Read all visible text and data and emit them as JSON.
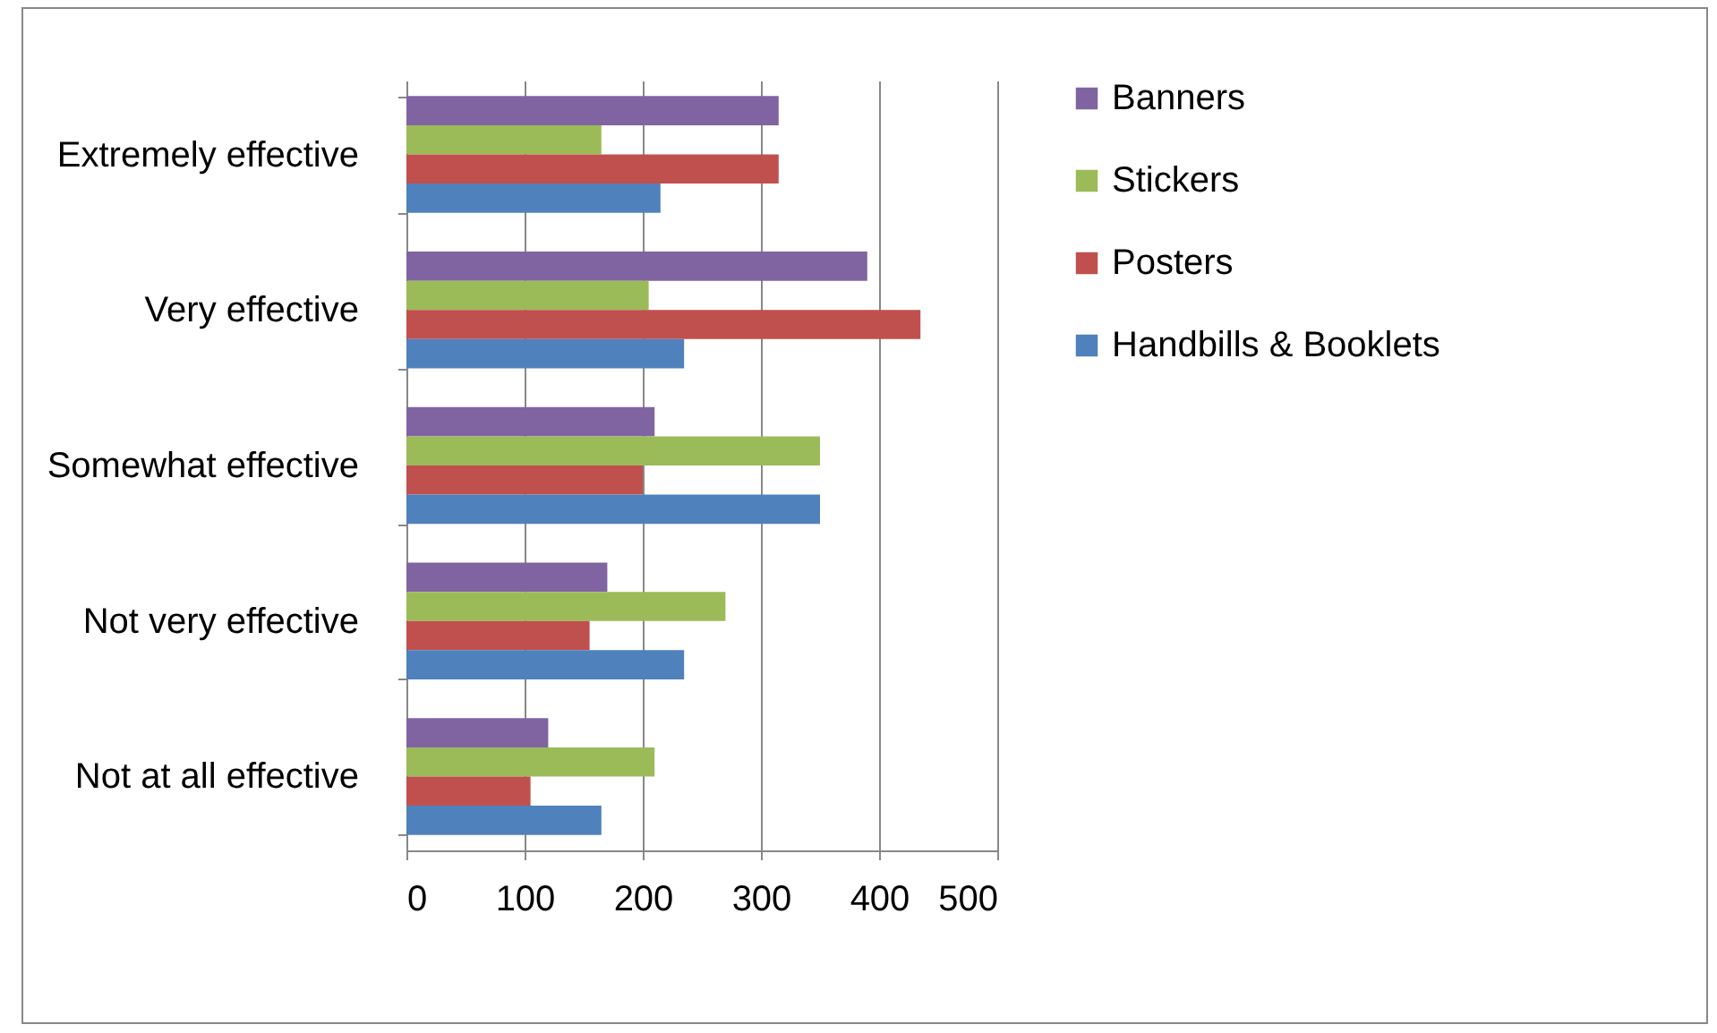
{
  "chart_data": {
    "type": "bar",
    "orientation": "horizontal",
    "categories": [
      "Extremely effective",
      "Very effective",
      "Somewhat effective",
      "Not very effective",
      "Not at all effective"
    ],
    "series": [
      {
        "name": "Banners",
        "color": "#8064a2",
        "values": [
          315,
          390,
          210,
          170,
          120
        ]
      },
      {
        "name": "Stickers",
        "color": "#9bbb59",
        "values": [
          165,
          205,
          350,
          270,
          210
        ]
      },
      {
        "name": "Posters",
        "color": "#c0504d",
        "values": [
          315,
          435,
          200,
          155,
          105
        ]
      },
      {
        "name": "Handbills & Booklets",
        "color": "#4f81bd",
        "values": [
          215,
          235,
          350,
          235,
          165
        ]
      }
    ],
    "xlim": [
      0,
      500
    ],
    "xticks": [
      0,
      100,
      200,
      300,
      400,
      500
    ],
    "grid": "x",
    "legend": "right"
  }
}
